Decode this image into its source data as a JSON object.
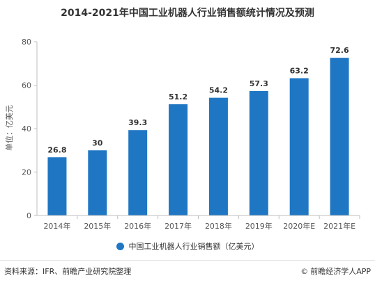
{
  "chart_data": {
    "type": "bar",
    "title": "2014-2021年中国工业机器人行业销售额统计情况及预测",
    "ylabel": "单位：亿美元",
    "categories": [
      "2014年",
      "2015年",
      "2016年",
      "2017年",
      "2018年",
      "2019年",
      "2020年E",
      "2021年E"
    ],
    "values": [
      26.8,
      30,
      39.3,
      51.2,
      54.2,
      57.3,
      63.2,
      72.6
    ],
    "value_labels": [
      "26.8",
      "30",
      "39.3",
      "51.2",
      "54.2",
      "57.3",
      "63.2",
      "72.6"
    ],
    "ylim": [
      0,
      80
    ],
    "yticks": [
      "0",
      "20",
      "40",
      "60",
      "80"
    ],
    "grid": false,
    "legend": {
      "position": "bottom",
      "label": "中国工业机器人行业销售额（亿美元）"
    },
    "bar_color": "#1f77c4"
  },
  "footer": {
    "source": "资料来源：IFR、前瞻产业研究院整理",
    "brand": "前瞻经济学人APP"
  }
}
